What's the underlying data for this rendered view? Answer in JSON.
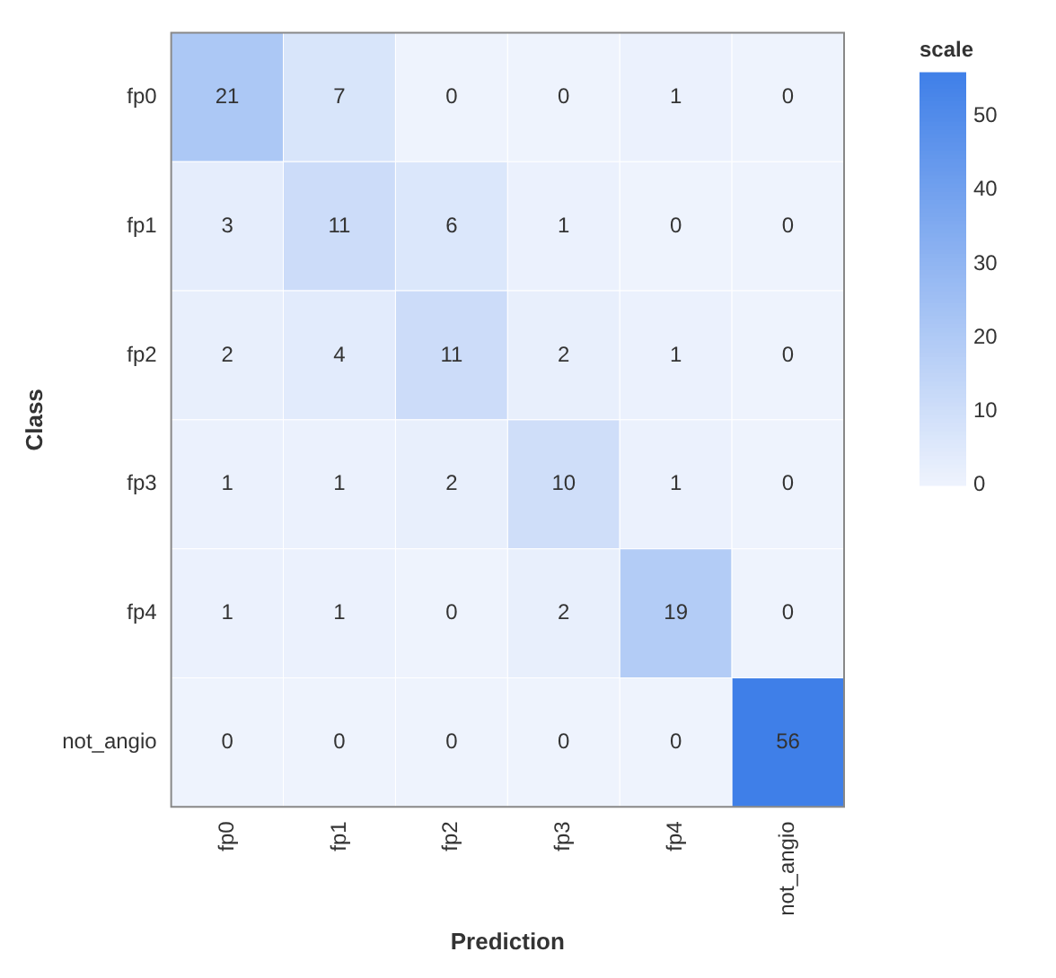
{
  "chart_data": {
    "type": "heatmap",
    "xlabel": "Prediction",
    "ylabel": "Class",
    "clabel": "scale",
    "categories": [
      "fp0",
      "fp1",
      "fp2",
      "fp3",
      "fp4",
      "not_angio"
    ],
    "y_categories": [
      "fp0",
      "fp1",
      "fp2",
      "fp3",
      "fp4",
      "not_angio"
    ],
    "cells": [
      [
        21,
        7,
        0,
        0,
        1,
        0
      ],
      [
        3,
        11,
        6,
        1,
        0,
        0
      ],
      [
        2,
        4,
        11,
        2,
        1,
        0
      ],
      [
        1,
        1,
        2,
        10,
        1,
        0
      ],
      [
        1,
        1,
        0,
        2,
        19,
        0
      ],
      [
        0,
        0,
        0,
        0,
        0,
        56
      ]
    ],
    "clim": [
      0,
      56
    ],
    "cticks": [
      0,
      10,
      20,
      30,
      40,
      50
    ],
    "data_labels": true
  }
}
